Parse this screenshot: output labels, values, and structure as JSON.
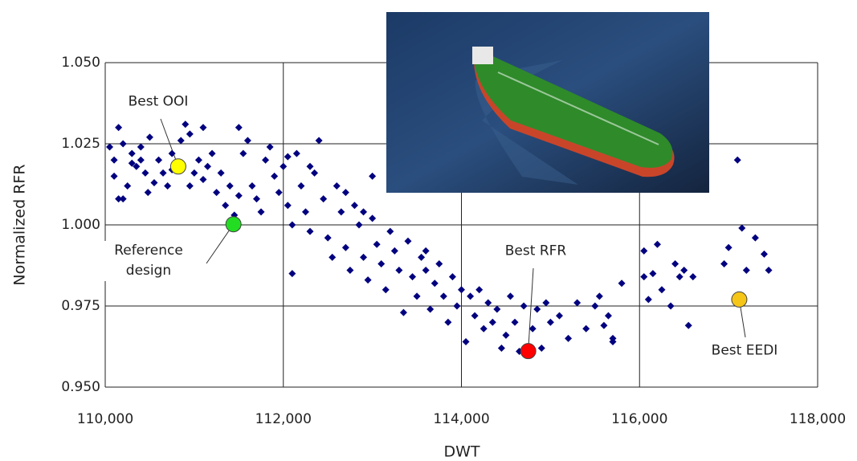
{
  "chart_data": {
    "type": "scatter",
    "x_label": "DWT",
    "y_label": "Normalized RFR",
    "xlim": [
      110000,
      118000
    ],
    "xticks": [
      {
        "value": 110000,
        "label": "110,000"
      },
      {
        "value": 112000,
        "label": "112,000"
      },
      {
        "value": 114000,
        "label": "114,000"
      },
      {
        "value": 116000,
        "label": "116,000"
      },
      {
        "value": 118000,
        "label": "118,000"
      }
    ],
    "ylim": [
      0.95,
      1.05
    ],
    "yticks": [
      {
        "value": 0.95,
        "label": "0.950"
      },
      {
        "value": 0.975,
        "label": "0.975"
      },
      {
        "value": 1.0,
        "label": "1.000"
      },
      {
        "value": 1.025,
        "label": "1.025"
      },
      {
        "value": 1.05,
        "label": "1.050"
      }
    ],
    "grid": true,
    "series": [
      {
        "color": "#00007f",
        "marker": "diamond",
        "x": [
          110050,
          110100,
          110150,
          110100,
          110200,
          110250,
          110200,
          110300,
          110350,
          110400,
          110450,
          110400,
          110500,
          110550,
          110480,
          110600,
          110650,
          110700,
          110750,
          110850,
          110900,
          110950,
          111000,
          111050,
          110950,
          111100,
          111150,
          111200,
          111250,
          111300,
          111350,
          111400,
          111450,
          111500,
          111550,
          111600,
          111650,
          111700,
          111750,
          111800,
          111850,
          111900,
          111950,
          112000,
          112050,
          112100,
          112150,
          112200,
          112250,
          112300,
          112350,
          112400,
          112450,
          112500,
          112550,
          112600,
          112650,
          112700,
          112750,
          112800,
          112850,
          112900,
          112950,
          113000,
          113050,
          113100,
          113150,
          113200,
          113250,
          113300,
          113350,
          113400,
          113450,
          113500,
          113550,
          113600,
          113650,
          113700,
          113750,
          113800,
          113850,
          113900,
          113950,
          114000,
          114050,
          114100,
          114150,
          114200,
          114250,
          114300,
          114350,
          114400,
          114450,
          114500,
          114550,
          114600,
          114650,
          114700,
          114800,
          114850,
          114900,
          114950,
          115000,
          115100,
          115200,
          115300,
          115400,
          115500,
          115600,
          115700,
          115800,
          115650,
          115550,
          116050,
          116100,
          116150,
          116200,
          116250,
          116350,
          116400,
          116450,
          116500,
          116550,
          116600,
          116950,
          117000,
          117100,
          117150,
          117200,
          117300,
          117400,
          117450,
          112100,
          111100,
          110150,
          116050,
          115700,
          112050,
          112300,
          112700,
          113000,
          110300,
          110750,
          111500,
          112900,
          113600
        ],
        "values": [
          1.024,
          1.02,
          1.03,
          1.015,
          1.025,
          1.012,
          1.008,
          1.022,
          1.018,
          1.02,
          1.016,
          1.024,
          1.027,
          1.013,
          1.01,
          1.02,
          1.016,
          1.012,
          1.022,
          1.026,
          1.031,
          1.028,
          1.016,
          1.02,
          1.012,
          1.014,
          1.018,
          1.022,
          1.01,
          1.016,
          1.006,
          1.012,
          1.003,
          1.03,
          1.022,
          1.026,
          1.012,
          1.008,
          1.004,
          1.02,
          1.024,
          1.015,
          1.01,
          1.018,
          1.006,
          1.0,
          1.022,
          1.012,
          1.004,
          0.998,
          1.016,
          1.026,
          1.008,
          0.996,
          0.99,
          1.012,
          1.004,
          0.993,
          0.986,
          1.006,
          1.0,
          0.99,
          0.983,
          1.002,
          0.994,
          0.988,
          0.98,
          0.998,
          0.992,
          0.986,
          0.973,
          0.995,
          0.984,
          0.978,
          0.99,
          0.986,
          0.974,
          0.982,
          0.988,
          0.978,
          0.97,
          0.984,
          0.975,
          0.98,
          0.964,
          0.978,
          0.972,
          0.98,
          0.968,
          0.976,
          0.97,
          0.974,
          0.962,
          0.966,
          0.978,
          0.97,
          0.961,
          0.975,
          0.968,
          0.974,
          0.962,
          0.976,
          0.97,
          0.972,
          0.965,
          0.976,
          0.968,
          0.975,
          0.969,
          0.965,
          0.982,
          0.972,
          0.978,
          0.992,
          0.977,
          0.985,
          0.994,
          0.98,
          0.975,
          0.988,
          0.984,
          0.986,
          0.969,
          0.984,
          0.988,
          0.993,
          1.02,
          0.999,
          0.986,
          0.996,
          0.991,
          0.986,
          0.985,
          1.03,
          1.008,
          0.984,
          0.964,
          1.021,
          1.018,
          1.01,
          1.015,
          1.019,
          1.017,
          1.009,
          1.004,
          0.992
        ]
      },
      {
        "name": "Best OOI",
        "color": "#ffff00",
        "marker": "circle",
        "x": [
          110820
        ],
        "values": [
          1.018
        ]
      },
      {
        "name": "Reference design",
        "color": "#22dd22",
        "marker": "circle",
        "x": [
          111440
        ],
        "values": [
          1.0002
        ]
      },
      {
        "name": "Best RFR",
        "color": "#ff0000",
        "marker": "circle",
        "x": [
          114750
        ],
        "values": [
          0.9611
        ]
      },
      {
        "name": "Best EEDI",
        "color": "#f5c518",
        "marker": "circle",
        "x": [
          117120
        ],
        "values": [
          0.977
        ]
      }
    ]
  }
}
